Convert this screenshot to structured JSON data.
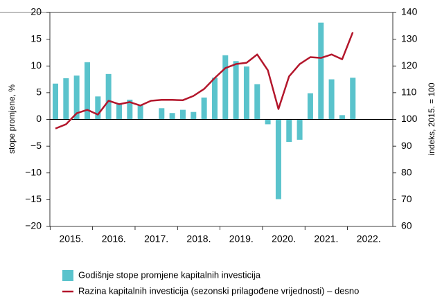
{
  "chart_data": {
    "type": "bar_line",
    "y_label": "stope promjene, %",
    "y2_label": "indeks, 2015. = 100",
    "year_labels": [
      "2015.",
      "2016.",
      "2017.",
      "2018.",
      "2019.",
      "2020.",
      "2021.",
      "2022."
    ],
    "categories": [
      null,
      null,
      null,
      null,
      null,
      null,
      null,
      null,
      null,
      null,
      null,
      null,
      null,
      null,
      null,
      null,
      null,
      null,
      null,
      null,
      null,
      null,
      null,
      null,
      null,
      null,
      null,
      null,
      null
    ],
    "series": [
      {
        "name": "Godišnje stope promjene kapitalnih investicija",
        "kind": "bar",
        "color": "#5ac3cc",
        "values": [
          6.7,
          7.7,
          8.2,
          10.7,
          4.3,
          8.5,
          3.0,
          3.7,
          2.7,
          null,
          2.1,
          1.2,
          1.8,
          1.4,
          4.1,
          7.8,
          12.0,
          10.9,
          9.9,
          6.6,
          -0.9,
          -14.9,
          -4.2,
          -3.8,
          4.9,
          18.1,
          7.5,
          0.8,
          7.8
        ]
      },
      {
        "name": "Razina kapitalnih investicija (sezonski prilagođene vrijednosti) – desno",
        "kind": "line",
        "axis": "y2",
        "color": "#b3162b",
        "values": [
          96.6,
          98.2,
          102.3,
          103.6,
          101.8,
          107.0,
          105.7,
          106.5,
          105.2,
          107.0,
          107.3,
          107.3,
          107.2,
          108.8,
          111.4,
          115.5,
          119.2,
          120.7,
          121.2,
          124.3,
          118.4,
          103.9,
          116.1,
          120.7,
          123.3,
          123.0,
          124.3,
          122.5,
          132.6
        ]
      }
    ],
    "ylim": [
      -20,
      20
    ],
    "yticks": [
      {
        "value": -20,
        "label": "−20"
      },
      {
        "value": -15,
        "label": "−15"
      },
      {
        "value": -10,
        "label": "−10"
      },
      {
        "value": -5,
        "label": "−5"
      },
      0,
      5,
      10,
      15,
      20
    ],
    "y2lim": [
      60,
      140
    ],
    "y2ticks": [
      60,
      70,
      80,
      90,
      100,
      110,
      120,
      130,
      140
    ]
  }
}
